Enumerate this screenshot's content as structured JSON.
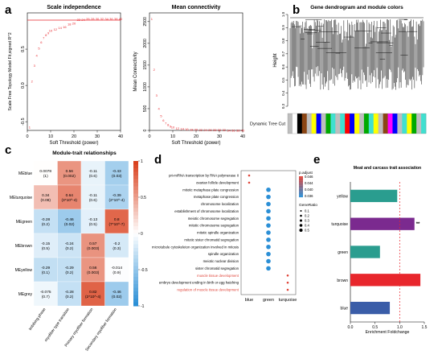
{
  "panel_labels": {
    "a": "a",
    "b": "b",
    "c": "c",
    "d": "d",
    "e": "e"
  },
  "chart_data": [
    {
      "id": "a1",
      "type": "scatter",
      "title": "Scale independence",
      "xlabel": "Soft Threshold (power)",
      "ylabel": "Scale Free Topology Model Fit,signed R^2",
      "xlim": [
        0,
        40
      ],
      "ylim": [
        -0.62,
        1.0
      ],
      "xticks": [
        0,
        10,
        20,
        30,
        40
      ],
      "yticks": [
        -0.5,
        0.0,
        0.5
      ],
      "hline": 0.9,
      "x": [
        1,
        2,
        3,
        4,
        5,
        6,
        7,
        8,
        9,
        10,
        12,
        14,
        16,
        18,
        20,
        22,
        24,
        26,
        28,
        30,
        32,
        34,
        36,
        38,
        40
      ],
      "y": [
        -0.57,
        0.06,
        0.28,
        0.42,
        0.52,
        0.6,
        0.66,
        0.7,
        0.73,
        0.76,
        0.78,
        0.8,
        0.81,
        0.85,
        0.86,
        0.91,
        0.91,
        0.92,
        0.92,
        0.92,
        0.92,
        0.92,
        0.92,
        0.92,
        0.92
      ],
      "point_labels": [
        "1",
        "2",
        "3",
        "4",
        "5",
        "6",
        "7",
        "8",
        "9",
        "10",
        "12",
        "14",
        "16",
        "18",
        "20",
        "22",
        "24",
        "26",
        "28",
        "30",
        "32",
        "34",
        "36",
        "38",
        "40"
      ]
    },
    {
      "id": "a2",
      "type": "scatter",
      "title": "Mean connectivity",
      "xlabel": "Soft Threshold (power)",
      "ylabel": "Mean Connectivity",
      "xlim": [
        0,
        40
      ],
      "ylim": [
        0,
        2700
      ],
      "xticks": [
        0,
        10,
        20,
        30,
        40
      ],
      "yticks": [
        0,
        500,
        1000,
        1500,
        2000,
        2500
      ],
      "x": [
        1,
        2,
        3,
        4,
        5,
        6,
        7,
        8,
        9,
        10,
        12,
        14,
        16,
        18,
        20,
        22,
        24,
        26,
        28,
        30,
        32,
        34,
        36,
        38,
        40
      ],
      "y": [
        2560,
        1400,
        800,
        500,
        330,
        230,
        165,
        125,
        95,
        75,
        50,
        35,
        25,
        18,
        14,
        11,
        9,
        8,
        7,
        6,
        5,
        4,
        4,
        3,
        3
      ],
      "point_labels": [
        "1",
        "2",
        "3",
        "4",
        "5",
        "6",
        "7",
        "8",
        "9",
        "10",
        "12",
        "14",
        "16",
        "18",
        "20",
        "22",
        "24",
        "26",
        "28",
        "30",
        "32",
        "34",
        "36",
        "38",
        "40"
      ]
    },
    {
      "id": "b",
      "type": "dendrogram",
      "title": "Gene dendrogram and module colors",
      "ylabel": "Height",
      "yticks": [
        "0.3",
        "0.4",
        "0.5",
        "0.6",
        "0.7",
        "0.8",
        "0.9",
        "1.0"
      ],
      "row_label": "Dynamic Tree Cut",
      "module_colors": [
        "#bebebe",
        "#ffffff",
        "#000000",
        "#8b4513",
        "#bebebe",
        "#ffff00",
        "#0000ff",
        "#bebebe",
        "#00aa00",
        "#40e0d0",
        "#bebebe",
        "#40e0d0",
        "#ff0000",
        "#0000ff",
        "#ffff00",
        "#bebebe",
        "#00aa00",
        "#40e0d0",
        "#ffff00",
        "#bebebe",
        "#8b4513",
        "#ff00ff",
        "#0000ff",
        "#bebebe",
        "#40e0d0",
        "#ffff00",
        "#00aa00",
        "#bebebe",
        "#40e0d0"
      ]
    },
    {
      "id": "c",
      "type": "heatmap",
      "title": "Module-trait relationships",
      "rows": [
        "MEblue",
        "MEturquoise",
        "MEgreen",
        "MEbrown",
        "MEyellow",
        "MEgrey"
      ],
      "columns": [
        "Imbibing phase",
        "myofiber type transition",
        "Primary myofiber formation",
        "Secondary myofiber formation"
      ],
      "values": [
        [
          0.0078,
          0.56,
          -0.11,
          -0.43
        ],
        [
          0.34,
          0.64,
          -0.11,
          -0.39
        ],
        [
          -0.28,
          -0.46,
          -0.13,
          0.8
        ],
        [
          -0.15,
          -0.24,
          0.57,
          -0.2
        ],
        [
          -0.29,
          -0.29,
          0.56,
          -0.014
        ],
        [
          -0.075,
          -0.28,
          0.82,
          -0.46
        ]
      ],
      "labels": [
        [
          "0.0078\n(1)",
          "0.56\n(0.002)",
          "-0.11\n(0.6)",
          "-0.43\n(0.03)"
        ],
        [
          "0.34\n(0.08)",
          "0.64\n(3*10^-4)",
          "-0.11\n(0.6)",
          "-0.39\n(2*10^-4)"
        ],
        [
          "-0.28\n(0.2)",
          "-0.46\n(0.02)",
          "-0.13\n(0.5)",
          "0.8\n(7*10^-7)"
        ],
        [
          "-0.15\n(0.5)",
          "-0.24\n(0.2)",
          "0.57\n(0.003)",
          "-0.2\n(0.3)"
        ],
        [
          "-0.29\n(0.1)",
          "-0.29\n(0.2)",
          "0.56\n(0.003)",
          "-0.014\n(0.9)"
        ],
        [
          "-0.075\n(0.7)",
          "-0.28\n(0.2)",
          "0.82\n(2*10^-4)",
          "-0.46\n(0.02)"
        ]
      ],
      "colorbar_ticks": [
        "1",
        "0.5",
        "0",
        "-0.5",
        "-1"
      ],
      "colors": {
        "high": "#d9411e",
        "mid": "#ffffff",
        "low": "#2b8fd6"
      }
    },
    {
      "id": "d",
      "type": "scatter",
      "title": "",
      "categories": [
        "blue",
        "green",
        "turquoise"
      ],
      "terms": [
        "pri-miRNA transcription by RNA polymerase II",
        "ovarian follicle development",
        "mitotic metaphase plate congression",
        "metaphase plate congression",
        "chromosome localization",
        "establishment of chromosome localization",
        "meiotic chromosome segregation",
        "mitotic chromosome segregation",
        "mitotic spindle organization",
        "mitotic sister chromatid segregation",
        "microtubule cytoskeleton organization involved in mitosis",
        "spindle organization",
        "meiotic nuclear division",
        "sister chromatid segregation",
        "muscle tissue development",
        "embryo development ending in birth or egg hatching",
        "regulation of muscle tissue development"
      ],
      "term_colors": [
        "#000000",
        "#000000",
        "#000000",
        "#000000",
        "#000000",
        "#000000",
        "#000000",
        "#000000",
        "#000000",
        "#000000",
        "#000000",
        "#000000",
        "#000000",
        "#000000",
        "#e0453a",
        "#000000",
        "#e0453a"
      ],
      "points": [
        {
          "term": 0,
          "cat": 0,
          "p_adjust": 0.046,
          "gene_ratio": 0.1
        },
        {
          "term": 1,
          "cat": 0,
          "p_adjust": 0.046,
          "gene_ratio": 0.1
        },
        {
          "term": 2,
          "cat": 1,
          "p_adjust": 0.036,
          "gene_ratio": 0.4
        },
        {
          "term": 3,
          "cat": 1,
          "p_adjust": 0.036,
          "gene_ratio": 0.4
        },
        {
          "term": 4,
          "cat": 1,
          "p_adjust": 0.036,
          "gene_ratio": 0.4
        },
        {
          "term": 5,
          "cat": 1,
          "p_adjust": 0.036,
          "gene_ratio": 0.4
        },
        {
          "term": 6,
          "cat": 1,
          "p_adjust": 0.036,
          "gene_ratio": 0.4
        },
        {
          "term": 7,
          "cat": 1,
          "p_adjust": 0.036,
          "gene_ratio": 0.4
        },
        {
          "term": 8,
          "cat": 1,
          "p_adjust": 0.036,
          "gene_ratio": 0.4
        },
        {
          "term": 9,
          "cat": 1,
          "p_adjust": 0.036,
          "gene_ratio": 0.4
        },
        {
          "term": 10,
          "cat": 1,
          "p_adjust": 0.036,
          "gene_ratio": 0.4
        },
        {
          "term": 11,
          "cat": 1,
          "p_adjust": 0.036,
          "gene_ratio": 0.4
        },
        {
          "term": 12,
          "cat": 1,
          "p_adjust": 0.036,
          "gene_ratio": 0.4
        },
        {
          "term": 13,
          "cat": 1,
          "p_adjust": 0.036,
          "gene_ratio": 0.4
        },
        {
          "term": 14,
          "cat": 2,
          "p_adjust": 0.046,
          "gene_ratio": 0.1
        },
        {
          "term": 15,
          "cat": 2,
          "p_adjust": 0.046,
          "gene_ratio": 0.1
        },
        {
          "term": 16,
          "cat": 2,
          "p_adjust": 0.046,
          "gene_ratio": 0.1
        }
      ],
      "legend_padjust_title": "p.adjust",
      "legend_padjust_ticks": [
        "0.046",
        "0.044",
        "0.040",
        "0.036"
      ],
      "legend_generatio_title": "GeneRatio",
      "legend_generatio_ticks": [
        "0.1",
        "0.2",
        "0.3",
        "0.4",
        "0.5"
      ],
      "colors": {
        "low": "#e0453a",
        "high": "#2b8fd6"
      }
    },
    {
      "id": "e",
      "type": "bar",
      "orientation": "horizontal",
      "title": "Meat and carcass trait association",
      "xlabel": "Enrichment Foldchange",
      "categories": [
        "yellow",
        "turquoise",
        "green",
        "brown",
        "blue"
      ],
      "values": [
        0.95,
        1.3,
        0.6,
        1.42,
        0.8
      ],
      "bar_colors": [
        "#2a9d8f",
        "#7b2a8f",
        "#2a9d8f",
        "#e8262c",
        "#3a5da8"
      ],
      "annotations": [
        "",
        "**",
        "",
        "",
        ""
      ],
      "xlim": [
        0,
        1.5
      ],
      "xticks": [
        "0.0",
        "0.5",
        "1.0",
        "1.5"
      ],
      "vline": 1.0
    }
  ]
}
